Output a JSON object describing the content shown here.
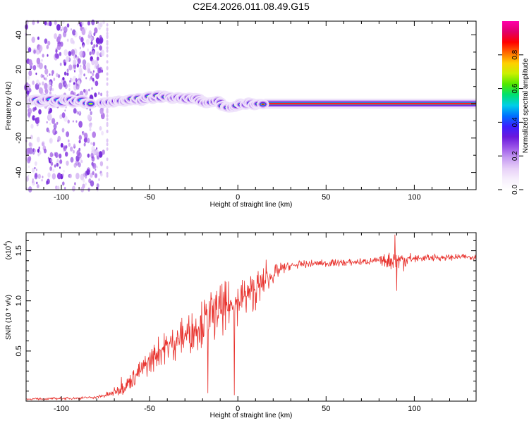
{
  "title": "C2E4.2026.011.08.49.G15",
  "colors": {
    "snr_line": "#e8312c",
    "signal_core": "#e02020",
    "scatter": "#7a22e0",
    "axes": "#000000"
  },
  "chart_data": [
    {
      "type": "heatmap",
      "name": "spectrogram",
      "xlabel": "Height of straight line (km)",
      "ylabel": "Frequency (Hz)",
      "xlim": [
        -120,
        135
      ],
      "ylim": [
        -50,
        48
      ],
      "xticks": [
        -100,
        -50,
        0,
        50,
        100
      ],
      "yticks": [
        -40,
        -20,
        0,
        20,
        40
      ],
      "ytick_labels": [
        "-40",
        "-20",
        "0",
        "20",
        "40"
      ],
      "colorbar": {
        "label": "Normalized spectral amplitude",
        "range": [
          0,
          1
        ],
        "ticks": [
          0.0,
          0.2,
          0.4,
          0.6,
          0.8
        ],
        "tick_labels": [
          "0.0",
          "0.2",
          "0.4",
          "0.6",
          "0.8"
        ],
        "colormap": [
          "#ffffff",
          "#f6eefc",
          "#e8d0f8",
          "#c79cf2",
          "#9b55e8",
          "#6a18dc",
          "#3a20ff",
          "#0070ff",
          "#00cfe8",
          "#00e070",
          "#50e800",
          "#c8f000",
          "#ffd000",
          "#ff6a00",
          "#ff0000",
          "#e0006a",
          "#ff00aa"
        ]
      },
      "noise_region_km": [
        -120,
        -72
      ],
      "signal_track": [
        {
          "x": -115,
          "f": 1.5
        },
        {
          "x": -105,
          "f": 1.5
        },
        {
          "x": -95,
          "f": 1.5
        },
        {
          "x": -87,
          "f": 1.2
        },
        {
          "x": -80,
          "f": 0.5
        },
        {
          "x": -75,
          "f": 0.0
        },
        {
          "x": -70,
          "f": 0.5
        },
        {
          "x": -65,
          "f": 1.0
        },
        {
          "x": -60,
          "f": 1.8
        },
        {
          "x": -55,
          "f": 2.5
        },
        {
          "x": -50,
          "f": 3.5
        },
        {
          "x": -45,
          "f": 4.0
        },
        {
          "x": -40,
          "f": 4.0
        },
        {
          "x": -35,
          "f": 3.5
        },
        {
          "x": -30,
          "f": 3.0
        },
        {
          "x": -25,
          "f": 2.5
        },
        {
          "x": -20,
          "f": 1.5
        },
        {
          "x": -15,
          "f": 1.0
        },
        {
          "x": -10,
          "f": 0.5
        },
        {
          "x": -6,
          "f": -2.0
        },
        {
          "x": -2,
          "f": -1.0
        },
        {
          "x": 5,
          "f": 0.0
        },
        {
          "x": 15,
          "f": 0.0
        },
        {
          "x": 135,
          "f": 0.0
        }
      ]
    },
    {
      "type": "line",
      "name": "snr",
      "xlabel": "Height of straight line (km)",
      "ylabel": "SNR (10 * v/v)",
      "scale_label": "(x10",
      "scale_exp": "4",
      "scale_close": ")",
      "xlim": [
        -120,
        135
      ],
      "ylim": [
        0,
        1.68
      ],
      "xticks": [
        -100,
        -50,
        0,
        50,
        100
      ],
      "yticks": [
        0.5,
        1.0,
        1.5
      ],
      "ytick_labels": [
        "0.5",
        "1.0",
        "1.5"
      ],
      "series": [
        {
          "name": "SNR",
          "trend": [
            [
              -120,
              0.02
            ],
            [
              -90,
              0.03
            ],
            [
              -80,
              0.04
            ],
            [
              -72,
              0.07
            ],
            [
              -65,
              0.14
            ],
            [
              -55,
              0.3
            ],
            [
              -45,
              0.5
            ],
            [
              -35,
              0.6
            ],
            [
              -25,
              0.72
            ],
            [
              -15,
              0.85
            ],
            [
              -5,
              0.95
            ],
            [
              5,
              1.05
            ],
            [
              15,
              1.18
            ],
            [
              20,
              1.26
            ],
            [
              25,
              1.32
            ],
            [
              30,
              1.35
            ],
            [
              40,
              1.37
            ],
            [
              60,
              1.38
            ],
            [
              80,
              1.4
            ],
            [
              90,
              1.41
            ],
            [
              110,
              1.43
            ],
            [
              135,
              1.44
            ]
          ],
          "amplitude": [
            [
              -120,
              0.01
            ],
            [
              -80,
              0.015
            ],
            [
              -70,
              0.05
            ],
            [
              -50,
              0.15
            ],
            [
              -30,
              0.22
            ],
            [
              -10,
              0.28
            ],
            [
              10,
              0.22
            ],
            [
              20,
              0.1
            ],
            [
              30,
              0.04
            ],
            [
              80,
              0.04
            ],
            [
              88,
              0.12
            ],
            [
              95,
              0.12
            ],
            [
              100,
              0.04
            ],
            [
              135,
              0.03
            ]
          ],
          "spikes": [
            {
              "x": -66,
              "y": 0.24
            },
            {
              "x": -19,
              "y": 1.01
            },
            {
              "x": -17,
              "y": 0.08
            },
            {
              "x": -7,
              "y": 0.71
            },
            {
              "x": -3,
              "y": 0.91
            },
            {
              "x": -2,
              "y": 0.06
            },
            {
              "x": 16,
              "y": 1.41
            },
            {
              "x": 89,
              "y": 1.66
            },
            {
              "x": 90,
              "y": 1.1
            }
          ]
        }
      ]
    }
  ]
}
